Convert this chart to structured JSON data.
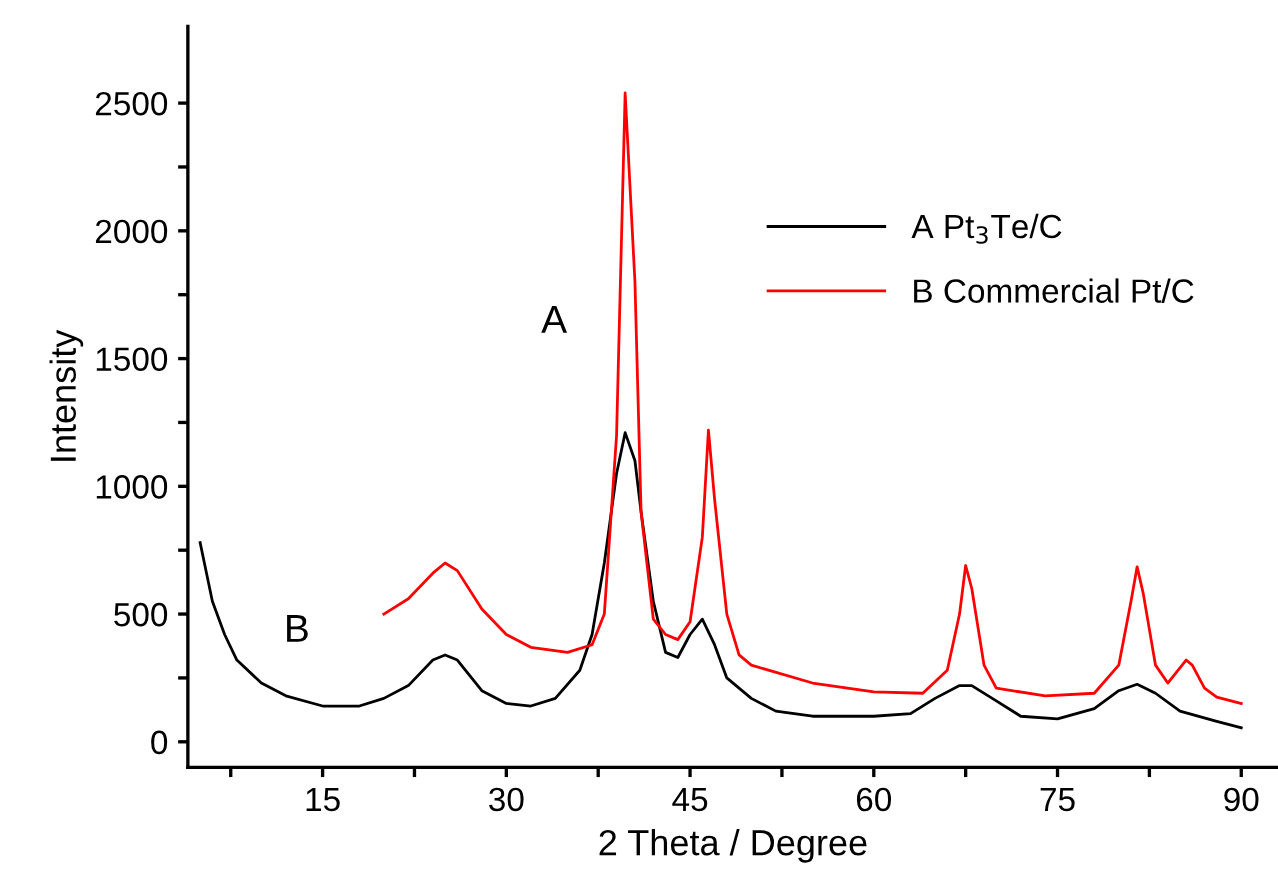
{
  "chart_data": {
    "type": "line",
    "xlabel": "2 Theta / Degree",
    "ylabel": "Intensity",
    "xlim": [
      4,
      93
    ],
    "ylim": [
      -100,
      2800
    ],
    "xticks": [
      {
        "value": 7.5,
        "label": null
      },
      15,
      {
        "value": 22.5,
        "label": null
      },
      30,
      {
        "value": 37.5,
        "label": null
      },
      45,
      {
        "value": 52.5,
        "label": null
      },
      60,
      {
        "value": 67.5,
        "label": null
      },
      75,
      {
        "value": 82.5,
        "label": null
      },
      90
    ],
    "yticks": [
      0,
      {
        "value": 250,
        "label": null
      },
      500,
      {
        "value": 750,
        "label": null
      },
      1000,
      {
        "value": 1250,
        "label": null
      },
      1500,
      {
        "value": 1750,
        "label": null
      },
      2000,
      {
        "value": 2250,
        "label": null
      },
      2500
    ],
    "legend": "top right",
    "grid": false,
    "marker": "none",
    "line_style": "solid",
    "annotations": [
      "A",
      "B"
    ],
    "series": [
      {
        "name": "A Pt$_{3}$Te/C",
        "color": "#000000",
        "x": [
          5,
          6,
          7,
          8,
          10,
          12,
          15,
          18,
          20,
          22,
          24,
          25,
          26,
          28,
          30,
          32,
          34,
          36,
          37,
          38,
          39,
          39.7,
          40.5,
          41,
          42,
          43,
          44,
          45,
          46,
          47,
          48,
          50,
          52,
          55,
          60,
          63,
          65,
          67,
          68,
          70,
          72,
          75,
          78,
          80,
          81.5,
          83,
          85,
          88,
          90
        ],
        "values": [
          780,
          550,
          420,
          320,
          230,
          180,
          140,
          140,
          170,
          220,
          320,
          340,
          320,
          200,
          150,
          140,
          170,
          280,
          420,
          700,
          1050,
          1210,
          1100,
          900,
          550,
          350,
          330,
          420,
          480,
          380,
          250,
          170,
          120,
          100,
          100,
          110,
          170,
          220,
          220,
          160,
          100,
          90,
          130,
          200,
          225,
          190,
          120,
          80,
          55
        ]
      },
      {
        "name": "B Commercial Pt/C",
        "color": "#ff0000",
        "x": [
          20,
          22,
          24,
          25,
          26,
          28,
          30,
          32,
          35,
          37,
          38,
          39,
          39.7,
          40.5,
          41,
          42,
          43,
          44,
          45,
          46,
          46.5,
          47,
          48,
          49,
          50,
          55,
          60,
          64,
          66,
          67,
          67.5,
          68,
          69,
          70,
          74,
          78,
          80,
          81,
          81.5,
          82,
          83,
          84,
          85.5,
          86,
          87,
          88,
          90
        ],
        "values": [
          500,
          560,
          660,
          700,
          670,
          520,
          420,
          370,
          350,
          380,
          500,
          1200,
          2540,
          1800,
          900,
          480,
          420,
          400,
          470,
          800,
          1220,
          950,
          500,
          340,
          300,
          230,
          195,
          190,
          280,
          500,
          690,
          600,
          300,
          210,
          180,
          190,
          300,
          550,
          685,
          580,
          300,
          230,
          320,
          300,
          210,
          175,
          150
        ]
      }
    ]
  }
}
